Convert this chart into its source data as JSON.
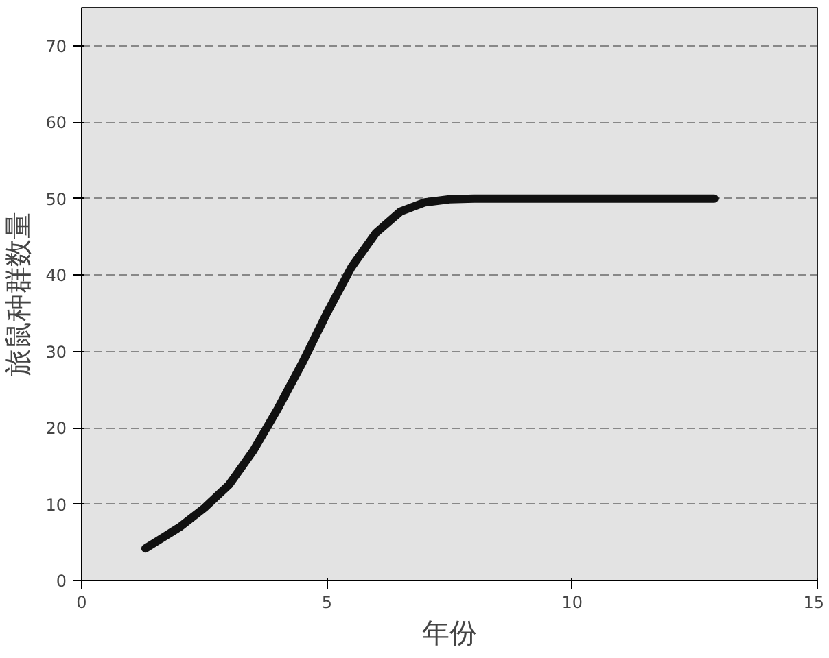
{
  "chart_data": {
    "type": "line",
    "xlabel": "年份",
    "ylabel": "旅鼠种群数量",
    "x": [
      1.3,
      1.5,
      2,
      2.5,
      3,
      3.5,
      4,
      4.5,
      5,
      5.5,
      6,
      6.5,
      7,
      7.5,
      8,
      9,
      10,
      11,
      12,
      12.9
    ],
    "series": [
      {
        "color": "#111111",
        "values": [
          4.2,
          5,
          7,
          9.5,
          12.5,
          17,
          22.5,
          28.5,
          35,
          41,
          45.5,
          48.3,
          49.5,
          49.9,
          50,
          50,
          50,
          50,
          50,
          50
        ]
      }
    ],
    "xlim": [
      0,
      15
    ],
    "ylim": [
      0,
      75
    ],
    "xticks": [
      0,
      5,
      10,
      15
    ],
    "yticks": [
      0,
      10,
      20,
      30,
      40,
      50,
      60,
      70
    ],
    "grid": "y",
    "marker": "none",
    "line_style": "solid"
  }
}
